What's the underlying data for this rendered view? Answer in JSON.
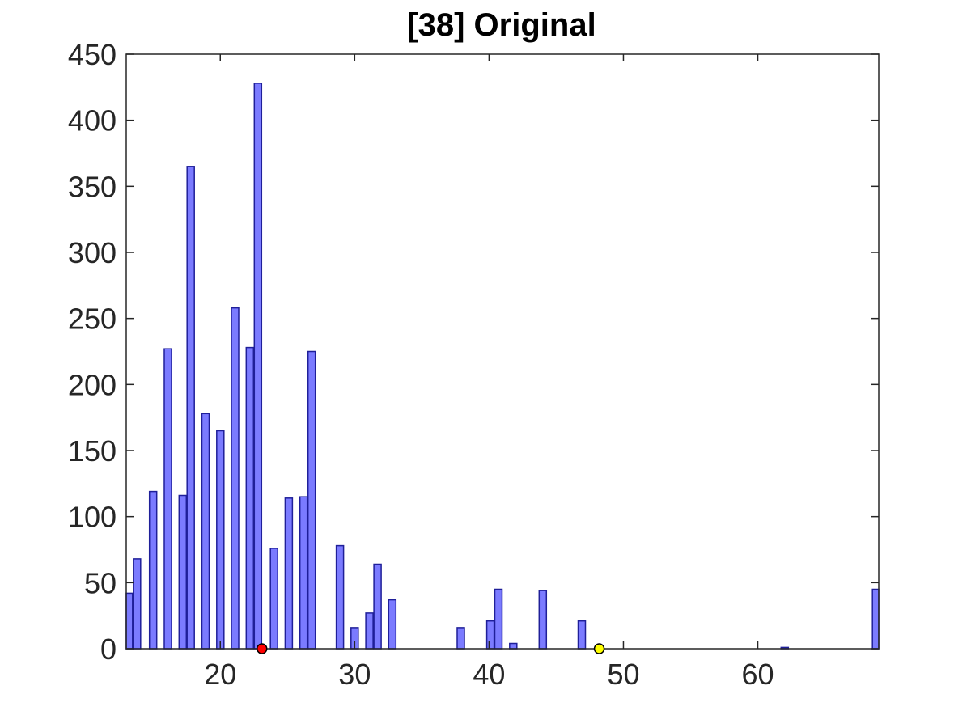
{
  "chart_data": {
    "type": "bar",
    "title": "[38] Original",
    "xlabel": "",
    "ylabel": "",
    "xlim": [
      13,
      69
    ],
    "ylim": [
      0,
      450
    ],
    "xticks": [
      20,
      30,
      40,
      50,
      60
    ],
    "yticks": [
      0,
      50,
      100,
      150,
      200,
      250,
      300,
      350,
      400,
      450
    ],
    "grid": false,
    "bar_color": "#7b7bff",
    "bar_edge_color": "#1f1f99",
    "axis_color": "#262626",
    "bars": [
      {
        "x": 13.2,
        "value": 42
      },
      {
        "x": 13.8,
        "value": 68
      },
      {
        "x": 15.0,
        "value": 119
      },
      {
        "x": 16.1,
        "value": 227
      },
      {
        "x": 17.2,
        "value": 116
      },
      {
        "x": 17.8,
        "value": 365
      },
      {
        "x": 18.9,
        "value": 178
      },
      {
        "x": 20.0,
        "value": 165
      },
      {
        "x": 21.1,
        "value": 258
      },
      {
        "x": 22.2,
        "value": 228
      },
      {
        "x": 22.8,
        "value": 428
      },
      {
        "x": 24.0,
        "value": 76
      },
      {
        "x": 25.1,
        "value": 114
      },
      {
        "x": 26.2,
        "value": 115
      },
      {
        "x": 26.8,
        "value": 225
      },
      {
        "x": 28.9,
        "value": 78
      },
      {
        "x": 30.0,
        "value": 16
      },
      {
        "x": 31.1,
        "value": 27
      },
      {
        "x": 31.7,
        "value": 64
      },
      {
        "x": 32.8,
        "value": 37
      },
      {
        "x": 37.9,
        "value": 16
      },
      {
        "x": 40.1,
        "value": 21
      },
      {
        "x": 40.7,
        "value": 45
      },
      {
        "x": 41.8,
        "value": 4
      },
      {
        "x": 44.0,
        "value": 44
      },
      {
        "x": 46.9,
        "value": 21
      },
      {
        "x": 62.0,
        "value": 1
      },
      {
        "x": 68.8,
        "value": 45
      }
    ],
    "markers": [
      {
        "x": 23.1,
        "value": 0,
        "color": "#ff0000"
      },
      {
        "x": 48.2,
        "value": 0,
        "color": "#ffff00"
      }
    ]
  }
}
